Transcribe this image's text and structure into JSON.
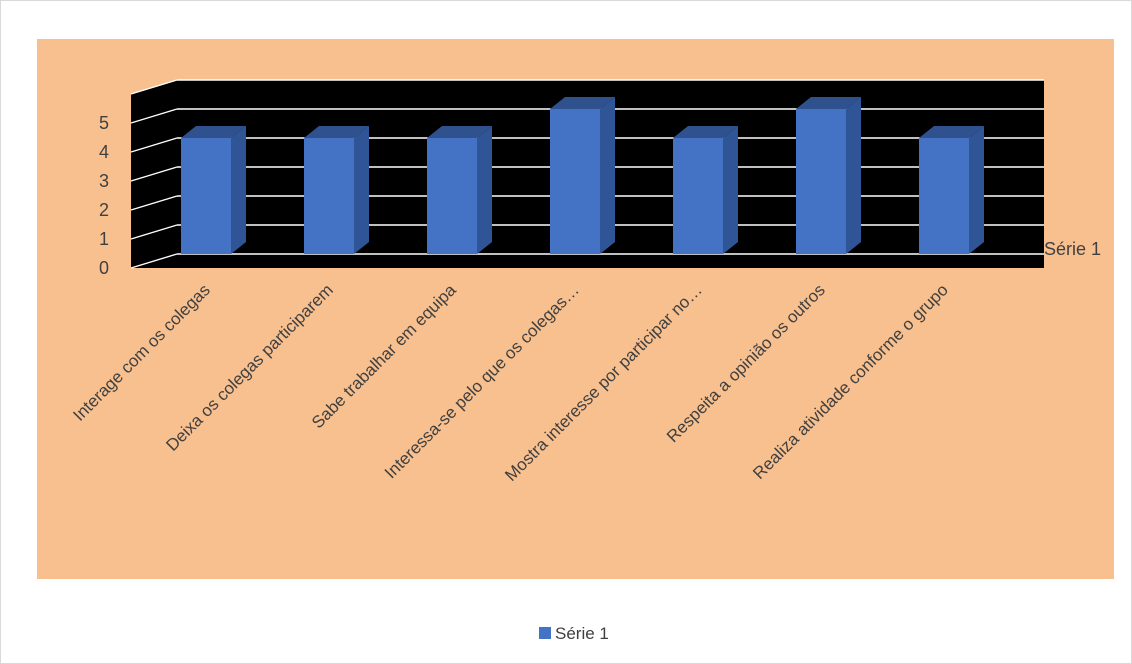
{
  "chart_data": {
    "type": "bar",
    "style": "3d-column",
    "categories": [
      "Interage com os colegas",
      "Deixa os colegas participarem",
      "Sabe trabalhar em equipa",
      "Interessa-se pelo que os colegas…",
      "Mostra interesse por participar no…",
      "Respeita a opinião os outros",
      "Realiza atividade conforme o grupo"
    ],
    "series": [
      {
        "name": "Série 1",
        "values": [
          4,
          4,
          4,
          5,
          4,
          5,
          4
        ]
      }
    ],
    "ylim": [
      0,
      5
    ],
    "yticks": [
      0,
      1,
      2,
      3,
      4,
      5
    ],
    "depth_axis_label": "Série 1",
    "grid": true,
    "legend": "bottom",
    "colors": {
      "bar_front": "#4472C4",
      "bar_side": "#2F5597",
      "bar_top": "#2F528F",
      "plot_back": "#000000",
      "chart_area": "#F8C08F",
      "grid": "#ffffff"
    }
  }
}
